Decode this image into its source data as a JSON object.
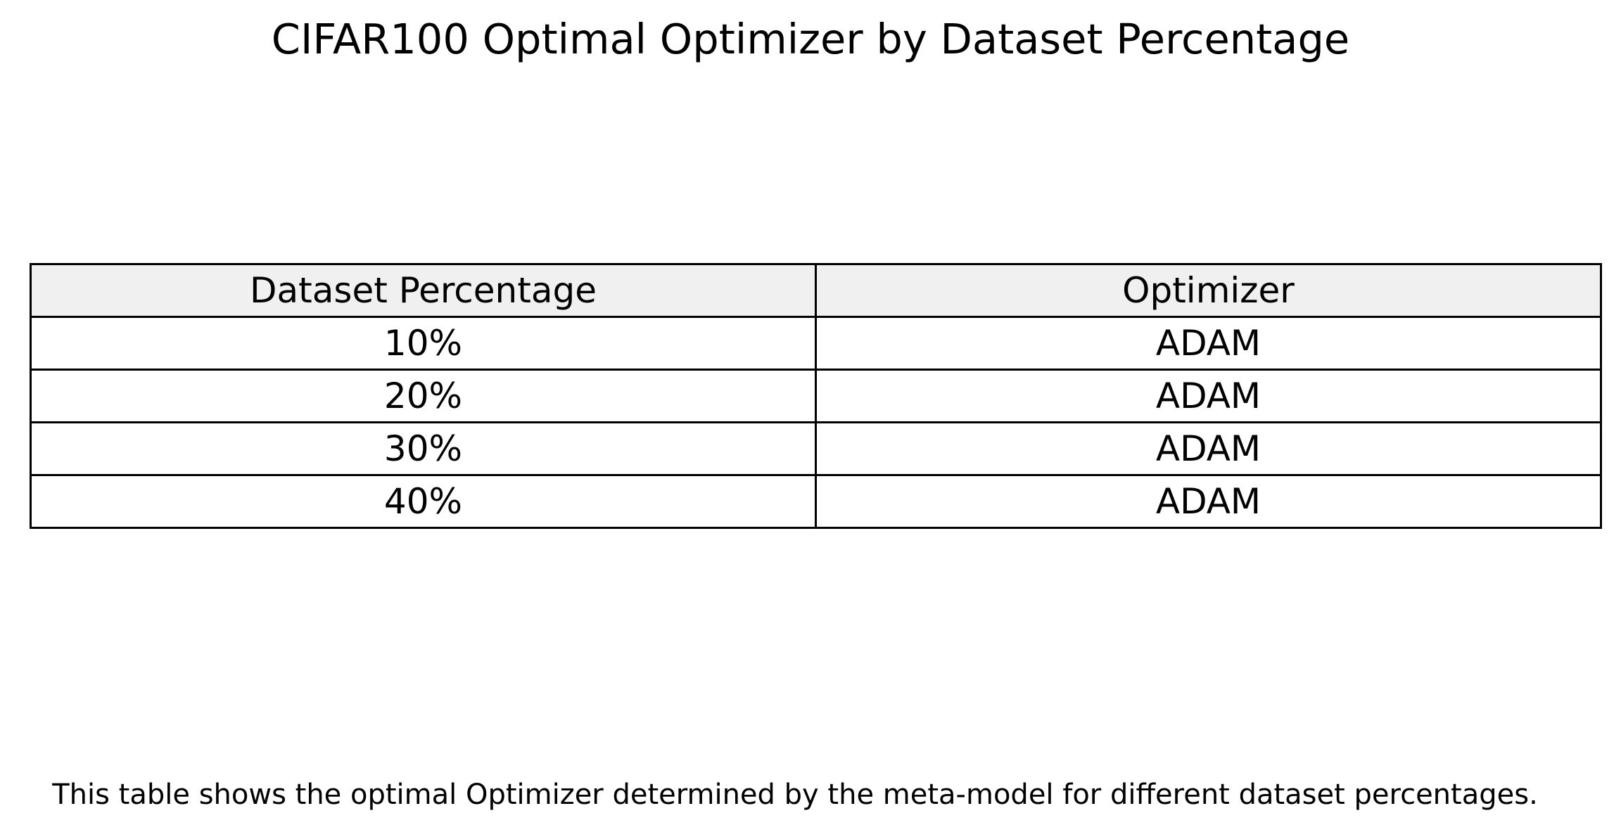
{
  "chart_data": {
    "type": "table",
    "title": "CIFAR100 Optimal Optimizer by Dataset Percentage",
    "columns": [
      "Dataset Percentage",
      "Optimizer"
    ],
    "header_background": "#f0f0f0",
    "border_color": "#000000",
    "rows": [
      [
        "10%",
        "ADAM"
      ],
      [
        "20%",
        "ADAM"
      ],
      [
        "30%",
        "ADAM"
      ],
      [
        "40%",
        "ADAM"
      ]
    ],
    "caption": "This table shows the optimal Optimizer determined by the meta-model for different dataset percentages."
  }
}
